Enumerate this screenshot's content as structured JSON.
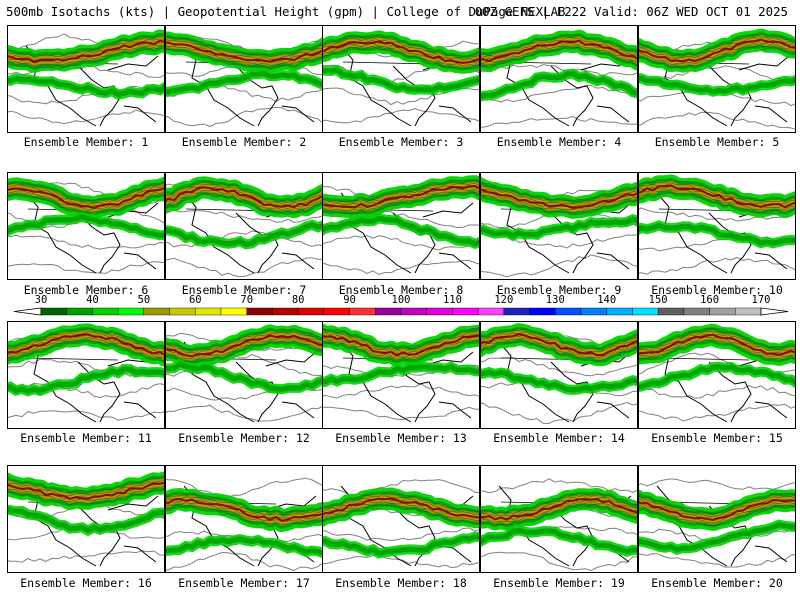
{
  "header": {
    "left": "500mb Isotachs (kts) | Geopotential Height (gpm) | College of DuPage NEXLAB",
    "right": "00Z GEFS | F222 Valid: 06Z WED OCT 01 2025"
  },
  "members": [
    {
      "label": "Ensemble Member: 1"
    },
    {
      "label": "Ensemble Member: 2"
    },
    {
      "label": "Ensemble Member: 3"
    },
    {
      "label": "Ensemble Member: 4"
    },
    {
      "label": "Ensemble Member: 5"
    },
    {
      "label": "Ensemble Member: 6"
    },
    {
      "label": "Ensemble Member: 7"
    },
    {
      "label": "Ensemble Member: 8"
    },
    {
      "label": "Ensemble Member: 9"
    },
    {
      "label": "Ensemble Member: 10"
    },
    {
      "label": "Ensemble Member: 11"
    },
    {
      "label": "Ensemble Member: 12"
    },
    {
      "label": "Ensemble Member: 13"
    },
    {
      "label": "Ensemble Member: 14"
    },
    {
      "label": "Ensemble Member: 15"
    },
    {
      "label": "Ensemble Member: 16"
    },
    {
      "label": "Ensemble Member: 17"
    },
    {
      "label": "Ensemble Member: 18"
    },
    {
      "label": "Ensemble Member: 19"
    },
    {
      "label": "Ensemble Member: 20"
    }
  ],
  "colorbar": {
    "labels": [
      "30",
      "40",
      "50",
      "60",
      "70",
      "80",
      "90",
      "100",
      "110",
      "120",
      "130",
      "140",
      "150",
      "160",
      "170"
    ],
    "colors": [
      "#006400",
      "#00a000",
      "#00d200",
      "#00ff00",
      "#9b9b00",
      "#c8c800",
      "#e6e600",
      "#ffff00",
      "#8b0000",
      "#b40000",
      "#dc0000",
      "#ff0000",
      "#ff3030",
      "#990099",
      "#c000c0",
      "#e000e0",
      "#ff00ff",
      "#ff40ff",
      "#2020c0",
      "#0000ff",
      "#0050ff",
      "#0080ff",
      "#00b0ff",
      "#00e0ff",
      "#606060",
      "#808080",
      "#a0a0a0",
      "#c0c0c0"
    ]
  }
}
